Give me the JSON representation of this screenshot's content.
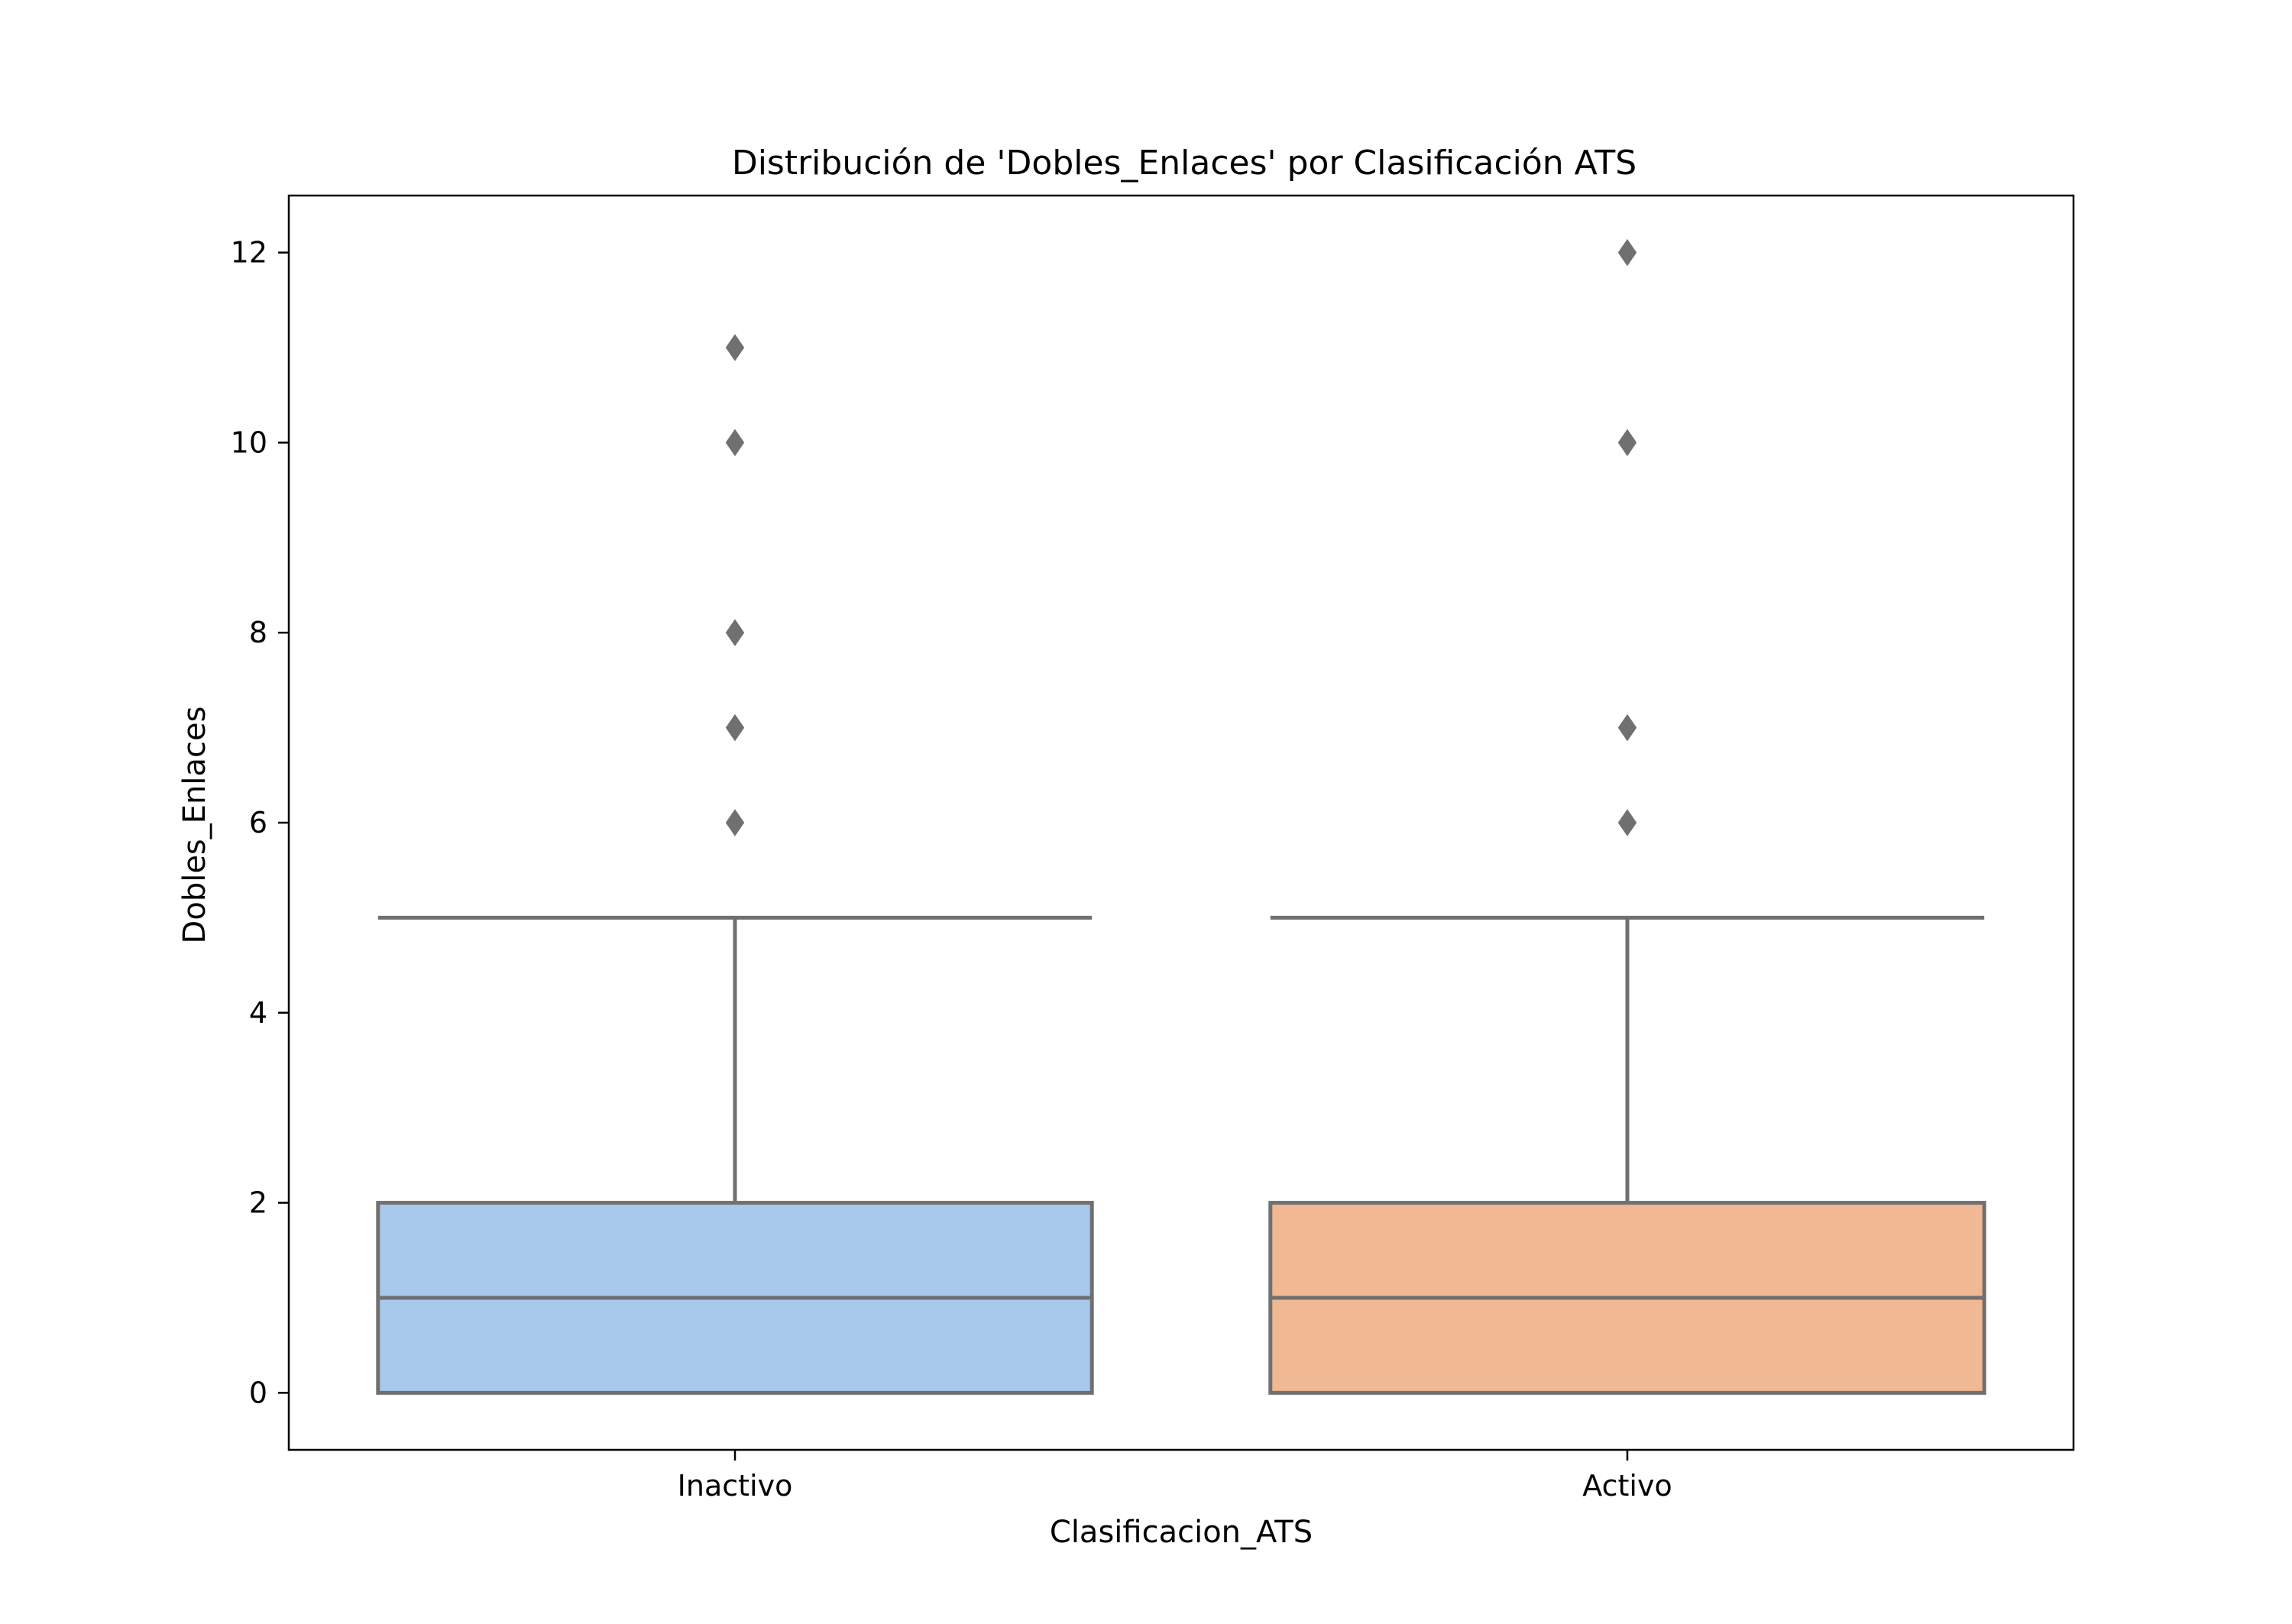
{
  "chart_data": {
    "type": "box",
    "title": "Distribución de 'Dobles_Enlaces' por Clasificación ATS",
    "xlabel": "Clasificacion_ATS",
    "ylabel": "Dobles_Enlaces",
    "categories": [
      "Inactivo",
      "Activo"
    ],
    "ylim": [
      -0.6,
      12.6
    ],
    "yticks": [
      0,
      2,
      4,
      6,
      8,
      10,
      12
    ],
    "grid": false,
    "boxes": [
      {
        "category": "Inactivo",
        "min": 0,
        "q1": 0,
        "median": 1,
        "q3": 2,
        "whisker_high": 5,
        "outliers": [
          6,
          7,
          8,
          10,
          11
        ],
        "color": "#a8c8ec"
      },
      {
        "category": "Activo",
        "min": 0,
        "q1": 0,
        "median": 1,
        "q3": 2,
        "whisker_high": 5,
        "outliers": [
          6,
          7,
          10,
          12
        ],
        "color": "#f0b893"
      }
    ],
    "line_color": "#707070"
  }
}
